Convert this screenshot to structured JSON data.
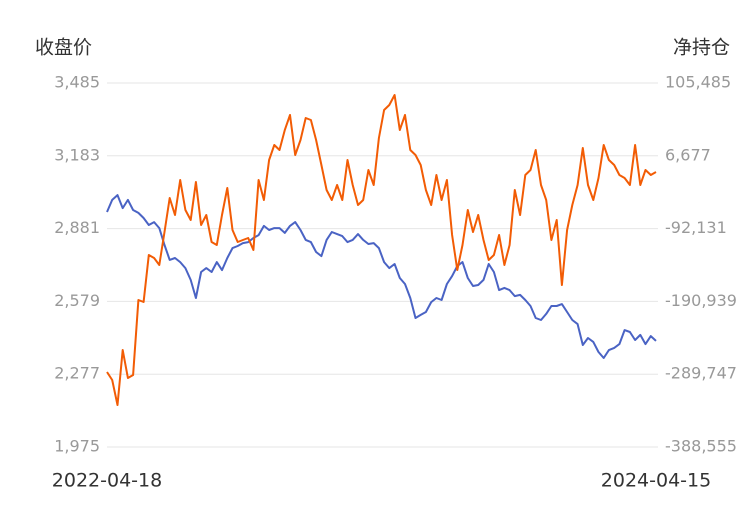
{
  "chart_data": {
    "type": "line",
    "y_label": "收盘价",
    "y2_label": "净持仓",
    "categories": [
      "2022-04-18",
      null,
      null,
      null,
      null,
      null,
      null,
      null,
      null,
      null,
      null,
      null,
      null,
      null,
      null,
      null,
      null,
      null,
      null,
      null,
      null,
      null,
      null,
      null,
      null,
      null,
      null,
      null,
      null,
      null,
      null,
      null,
      null,
      null,
      null,
      null,
      null,
      null,
      null,
      null,
      null,
      null,
      null,
      null,
      null,
      null,
      null,
      null,
      null,
      null,
      null,
      null,
      null,
      null,
      null,
      null,
      null,
      null,
      null,
      null,
      null,
      null,
      null,
      null,
      null,
      null,
      null,
      null,
      null,
      null,
      null,
      null,
      null,
      null,
      null,
      null,
      null,
      null,
      null,
      null,
      null,
      null,
      null,
      null,
      null,
      null,
      null,
      null,
      null,
      null,
      null,
      null,
      null,
      null,
      null,
      null,
      null,
      null,
      null,
      null,
      null,
      null,
      null,
      null,
      null,
      "2024-04-15"
    ],
    "series": [
      {
        "color": "#4a63c4",
        "axis": "y",
        "values": [
          2950,
          3000,
          3020,
          2966,
          3000,
          2958,
          2946,
          2925,
          2896,
          2908,
          2883,
          2813,
          2751,
          2759,
          2742,
          2717,
          2668,
          2593,
          2701,
          2717,
          2701,
          2742,
          2709,
          2759,
          2800,
          2809,
          2821,
          2825,
          2842,
          2854,
          2892,
          2875,
          2883,
          2883,
          2863,
          2892,
          2908,
          2875,
          2834,
          2825,
          2784,
          2767,
          2834,
          2867,
          2858,
          2850,
          2825,
          2834,
          2858,
          2834,
          2817,
          2821,
          2800,
          2742,
          2717,
          2734,
          2676,
          2651,
          2593,
          2510,
          2523,
          2535,
          2576,
          2593,
          2585,
          2651,
          2684,
          2726,
          2742,
          2676,
          2643,
          2647,
          2668,
          2734,
          2701,
          2626,
          2635,
          2626,
          2601,
          2606,
          2585,
          2560,
          2510,
          2502,
          2527,
          2560,
          2560,
          2568,
          2535,
          2502,
          2485,
          2398,
          2427,
          2411,
          2369,
          2344,
          2377,
          2386,
          2402,
          2460,
          2452,
          2419,
          2440,
          2402,
          2435,
          2415
        ]
      },
      {
        "color": "#f25c05",
        "axis": "y2",
        "values": [
          -286761,
          -297619,
          -331550,
          -256902,
          -294905,
          -290833,
          -189039,
          -191754,
          -127963,
          -132035,
          -141535,
          -96746,
          -50600,
          -73673,
          -26169,
          -66887,
          -80459,
          -28884,
          -87245,
          -73673,
          -110319,
          -114390,
          -73673,
          -37027,
          -94032,
          -110319,
          -107604,
          -104890,
          -121177,
          -26169,
          -53314,
          976,
          21335,
          14548,
          41693,
          62052,
          7762,
          28121,
          57980,
          55266,
          28121,
          -5810,
          -39742,
          -53314,
          -32955,
          -53314,
          976,
          -32955,
          -60100,
          -53314,
          -12597,
          -32955,
          30835,
          68838,
          75625,
          89197,
          41693,
          62052,
          14548,
          7762,
          -5810,
          -39742,
          -60100,
          -19383,
          -53314,
          -26169,
          -100818,
          -148322,
          -114390,
          -66887,
          -96746,
          -73673,
          -107604,
          -134749,
          -127963,
          -100818,
          -141535,
          -114390,
          -39742,
          -73673,
          -19383,
          -12597,
          14548,
          -32955,
          -53314,
          -107604,
          -80459,
          -168680,
          -94032,
          -60100,
          -32955,
          17263,
          -32955,
          -53314,
          -23455,
          21335,
          976,
          -5810,
          -19383,
          -23455,
          -32955,
          21335,
          -32955,
          -12597,
          -19383,
          -15311
        ]
      }
    ],
    "ylim": [
      1975,
      3485
    ],
    "yticks": [
      {
        "value": 1975,
        "label": "1,975"
      },
      {
        "value": 2277,
        "label": "2,277"
      },
      {
        "value": 2579,
        "label": "2,579"
      },
      {
        "value": 2881,
        "label": "2,881"
      },
      {
        "value": 3183,
        "label": "3,183"
      },
      {
        "value": 3485,
        "label": "3,485"
      }
    ],
    "y2lim": [
      -388555,
      105485
    ],
    "y2ticks": [
      {
        "value": -388555,
        "label": "-388,555"
      },
      {
        "value": -289747,
        "label": "-289,747"
      },
      {
        "value": -190939,
        "label": "-190,939"
      },
      {
        "value": -92131,
        "label": "-92,131"
      },
      {
        "value": 6677,
        "label": "6,677"
      },
      {
        "value": 105485,
        "label": "105,485"
      }
    ],
    "grid": true
  }
}
